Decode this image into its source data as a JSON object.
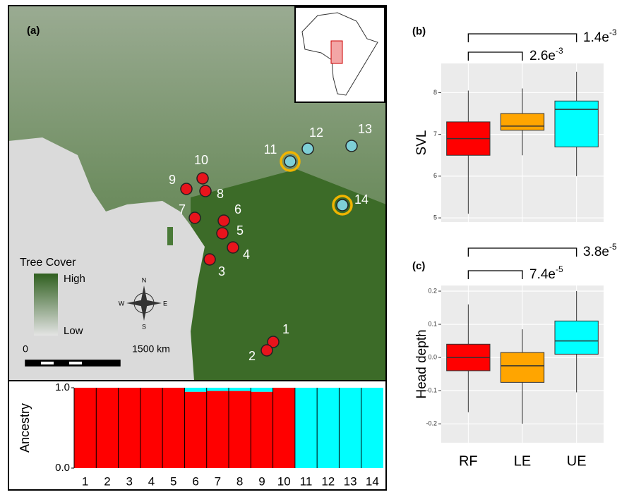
{
  "map": {
    "panel": "(a)",
    "legend_title": "Tree Cover",
    "legend_high": "High",
    "legend_low": "Low",
    "scale_start": "0",
    "scale_end": "1500 km",
    "compass": {
      "n": "N",
      "s": "S",
      "e": "E",
      "w": "W"
    },
    "sites": [
      "1",
      "2",
      "3",
      "4",
      "5",
      "6",
      "7",
      "8",
      "9",
      "10",
      "11",
      "12",
      "13",
      "14"
    ]
  },
  "chart_data": [
    {
      "type": "stacked_bar",
      "y_label": "Ancestry",
      "categories": [
        "1",
        "2",
        "3",
        "4",
        "5",
        "6",
        "7",
        "8",
        "9",
        "10",
        "11",
        "12",
        "13",
        "14"
      ],
      "ylim": [
        0,
        1
      ],
      "yticks": [
        {
          "value": 0,
          "label": "0.0"
        },
        {
          "value": 1,
          "label": "1.0"
        }
      ],
      "series": [
        {
          "color": "#ff0000",
          "values": [
            1,
            1,
            1,
            1,
            1,
            0.95,
            0.96,
            0.96,
            0.95,
            1,
            0,
            0,
            0,
            0
          ]
        },
        {
          "color": "#00ffff",
          "values": [
            0,
            0,
            0,
            0,
            0,
            0.05,
            0.04,
            0.04,
            0.05,
            0,
            1,
            1,
            1,
            1
          ]
        }
      ]
    },
    {
      "type": "box",
      "panel": "(b)",
      "y_label": "SVL",
      "ylim": [
        4.9,
        8.7
      ],
      "yticks": [
        5,
        6,
        7,
        8
      ],
      "boxes": [
        {
          "color": "#ff0000",
          "values": [
            5.1,
            6.5,
            6.9,
            7.3,
            8.05
          ]
        },
        {
          "color": "#ffa500",
          "values": [
            6.5,
            7.1,
            7.2,
            7.5,
            8.1
          ]
        },
        {
          "color": "#00ffff",
          "values": [
            6.0,
            6.7,
            7.6,
            7.8,
            8.5
          ]
        }
      ],
      "annotations": [
        {
          "base": "1.4e",
          "exp": "-3"
        },
        {
          "base": "2.6e",
          "exp": "-3"
        }
      ]
    },
    {
      "type": "box",
      "panel": "(c)",
      "y_label": "Head depth",
      "categories": [
        "RF",
        "LE",
        "UE"
      ],
      "ylim": [
        -0.257,
        0.217
      ],
      "yticks": [
        -0.2,
        -0.1,
        {
          "value": 0,
          "label": "0.0"
        },
        0.1,
        0.2
      ],
      "boxes": [
        {
          "color": "#ff0000",
          "values": [
            -0.165,
            -0.04,
            0.0,
            0.04,
            0.16
          ]
        },
        {
          "color": "#ffa500",
          "values": [
            -0.2,
            -0.075,
            -0.025,
            0.015,
            0.085
          ]
        },
        {
          "color": "#00ffff",
          "values": [
            -0.105,
            0.01,
            0.05,
            0.11,
            0.2
          ]
        }
      ],
      "annotations": [
        {
          "base": "3.8e",
          "exp": "-5"
        },
        {
          "base": "7.4e",
          "exp": "-5"
        }
      ]
    }
  ]
}
